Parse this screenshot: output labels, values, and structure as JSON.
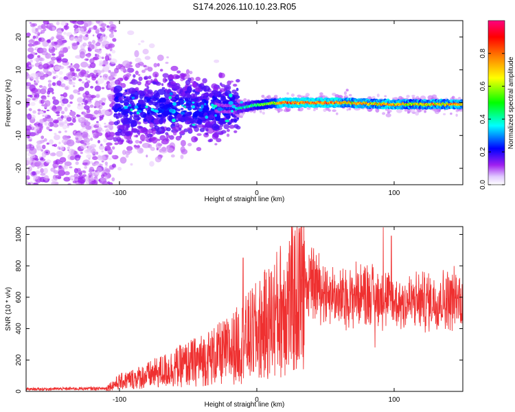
{
  "title": "S174.2026.110.10.23.R05",
  "chart_data": [
    {
      "type": "heatmap",
      "xlabel": "Height of straight line (km)",
      "ylabel": "Frequency (Hz)",
      "xlim": [
        -168,
        150
      ],
      "ylim": [
        -25,
        25
      ],
      "xticks": [
        -100,
        0,
        100
      ],
      "yticks": [
        20,
        10,
        0,
        -10,
        -20
      ],
      "colorbar": {
        "label": "Normalized spectral amplitude",
        "range": [
          0,
          1
        ],
        "ticks": [
          "0.0",
          "0.2",
          "0.4",
          "0.6",
          "0.8"
        ],
        "colors": [
          "#ffffff",
          "#a020f0",
          "#0000ff",
          "#00ffff",
          "#00ff00",
          "#ffff00",
          "#ff8000",
          "#ff0000",
          "#ff0080"
        ]
      },
      "ridge": {
        "description_points_km": [
          -30,
          -15,
          -5,
          5,
          20,
          60,
          100,
          150
        ],
        "frequency_hz": [
          -1.5,
          -2,
          -1,
          -0.5,
          0,
          0,
          -0.5,
          -0.5
        ]
      }
    },
    {
      "type": "line",
      "xlabel": "Height of straight line (km)",
      "ylabel": "SNR (10 * v/v)",
      "xlim": [
        -168,
        150
      ],
      "ylim": [
        0,
        1050
      ],
      "xticks": [
        -100,
        0,
        100
      ],
      "yticks": [
        0,
        200,
        400,
        600,
        800,
        1000
      ],
      "color": "#ef3030",
      "series": [
        {
          "name": "SNR",
          "envelope_x_km": [
            -168,
            -110,
            -100,
            -80,
            -60,
            -40,
            -20,
            -10,
            0,
            10,
            20,
            30,
            40,
            60,
            80,
            100,
            120,
            150
          ],
          "envelope_mean": [
            15,
            20,
            60,
            100,
            150,
            200,
            260,
            320,
            380,
            450,
            550,
            600,
            720,
            600,
            650,
            580,
            590,
            610
          ],
          "peaks": [
            {
              "x": -10,
              "y": 850
            },
            {
              "x": 38,
              "y": 870
            },
            {
              "x": 92,
              "y": 1045
            },
            {
              "x": 98,
              "y": 990
            },
            {
              "x": 86,
              "y": 280
            }
          ]
        }
      ]
    }
  ]
}
